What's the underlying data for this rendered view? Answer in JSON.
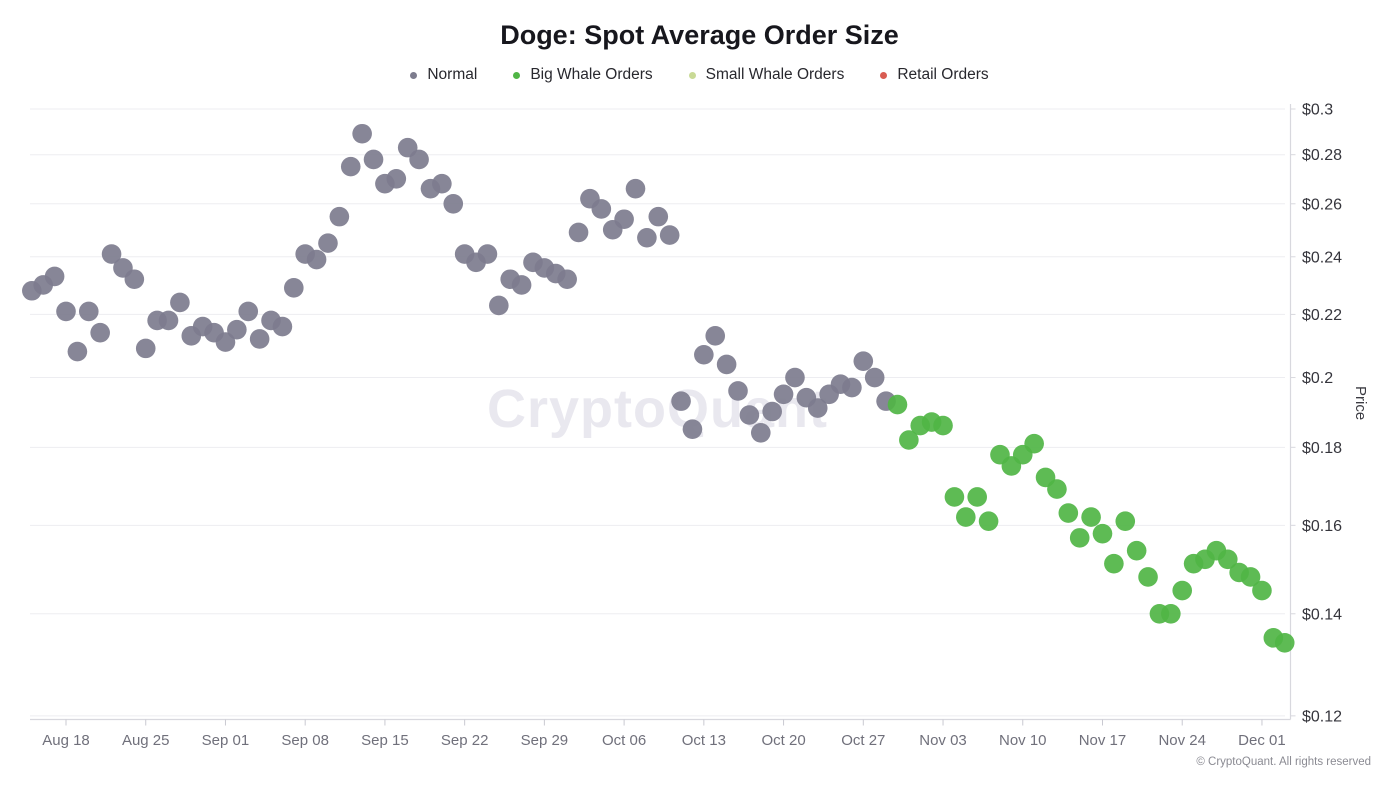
{
  "watermark": "CryptoQuant",
  "copyright": "© CryptoQuant. All rights reserved",
  "chart_data": {
    "type": "scatter",
    "title": "Doge: Spot Average Order Size",
    "xlabel": "",
    "ylabel": "Price",
    "y_scale": "log",
    "y_axis_side": "right",
    "grid": true,
    "legend_position": "top",
    "ylim": [
      0.12,
      0.3
    ],
    "x_ticks": [
      "Aug 18",
      "Aug 25",
      "Sep 01",
      "Sep 08",
      "Sep 15",
      "Sep 22",
      "Sep 29",
      "Oct 06",
      "Oct 13",
      "Oct 20",
      "Oct 27",
      "Nov 03",
      "Nov 10",
      "Nov 17",
      "Nov 24",
      "Dec 01"
    ],
    "y_ticks": [
      {
        "label": "$0.3",
        "value": 0.3
      },
      {
        "label": "$0.28",
        "value": 0.28
      },
      {
        "label": "$0.26",
        "value": 0.26
      },
      {
        "label": "$0.24",
        "value": 0.24
      },
      {
        "label": "$0.22",
        "value": 0.22
      },
      {
        "label": "$0.2",
        "value": 0.2
      },
      {
        "label": "$0.18",
        "value": 0.18
      },
      {
        "label": "$0.16",
        "value": 0.16
      },
      {
        "label": "$0.14",
        "value": 0.14
      },
      {
        "label": "$0.12",
        "value": 0.12
      }
    ],
    "series": [
      {
        "name": "Normal",
        "color": "#7d7c8e",
        "points": [
          [
            "Aug 15",
            0.228
          ],
          [
            "Aug 16",
            0.23
          ],
          [
            "Aug 17",
            0.233
          ],
          [
            "Aug 18",
            0.221
          ],
          [
            "Aug 19",
            0.208
          ],
          [
            "Aug 20",
            0.221
          ],
          [
            "Aug 21",
            0.214
          ],
          [
            "Aug 22",
            0.241
          ],
          [
            "Aug 23",
            0.236
          ],
          [
            "Aug 24",
            0.232
          ],
          [
            "Aug 25",
            0.209
          ],
          [
            "Aug 26",
            0.218
          ],
          [
            "Aug 27",
            0.218
          ],
          [
            "Aug 28",
            0.224
          ],
          [
            "Aug 29",
            0.213
          ],
          [
            "Aug 30",
            0.216
          ],
          [
            "Aug 31",
            0.214
          ],
          [
            "Sep 01",
            0.211
          ],
          [
            "Sep 02",
            0.215
          ],
          [
            "Sep 03",
            0.221
          ],
          [
            "Sep 04",
            0.212
          ],
          [
            "Sep 05",
            0.218
          ],
          [
            "Sep 06",
            0.216
          ],
          [
            "Sep 07",
            0.229
          ],
          [
            "Sep 08",
            0.241
          ],
          [
            "Sep 09",
            0.239
          ],
          [
            "Sep 10",
            0.245
          ],
          [
            "Sep 11",
            0.255
          ],
          [
            "Sep 12",
            0.275
          ],
          [
            "Sep 13",
            0.289
          ],
          [
            "Sep 14",
            0.278
          ],
          [
            "Sep 15",
            0.268
          ],
          [
            "Sep 16",
            0.27
          ],
          [
            "Sep 17",
            0.283
          ],
          [
            "Sep 18",
            0.278
          ],
          [
            "Sep 19",
            0.266
          ],
          [
            "Sep 20",
            0.268
          ],
          [
            "Sep 21",
            0.26
          ],
          [
            "Sep 22",
            0.241
          ],
          [
            "Sep 23",
            0.238
          ],
          [
            "Sep 24",
            0.241
          ],
          [
            "Sep 25",
            0.223
          ],
          [
            "Sep 26",
            0.232
          ],
          [
            "Sep 27",
            0.23
          ],
          [
            "Sep 28",
            0.238
          ],
          [
            "Sep 29",
            0.236
          ],
          [
            "Sep 30",
            0.234
          ],
          [
            "Oct 01",
            0.232
          ],
          [
            "Oct 02",
            0.249
          ],
          [
            "Oct 03",
            0.262
          ],
          [
            "Oct 04",
            0.258
          ],
          [
            "Oct 05",
            0.25
          ],
          [
            "Oct 06",
            0.254
          ],
          [
            "Oct 07",
            0.266
          ],
          [
            "Oct 08",
            0.247
          ],
          [
            "Oct 09",
            0.255
          ],
          [
            "Oct 10",
            0.248
          ],
          [
            "Oct 11",
            0.193
          ],
          [
            "Oct 12",
            0.185
          ],
          [
            "Oct 13",
            0.207
          ],
          [
            "Oct 14",
            0.213
          ],
          [
            "Oct 15",
            0.204
          ],
          [
            "Oct 16",
            0.196
          ],
          [
            "Oct 17",
            0.189
          ],
          [
            "Oct 18",
            0.184
          ],
          [
            "Oct 19",
            0.19
          ],
          [
            "Oct 20",
            0.195
          ],
          [
            "Oct 21",
            0.2
          ],
          [
            "Oct 22",
            0.194
          ],
          [
            "Oct 23",
            0.191
          ],
          [
            "Oct 24",
            0.195
          ],
          [
            "Oct 25",
            0.198
          ],
          [
            "Oct 26",
            0.197
          ],
          [
            "Oct 27",
            0.205
          ],
          [
            "Oct 28",
            0.2
          ],
          [
            "Oct 29",
            0.193
          ]
        ]
      },
      {
        "name": "Big Whale Orders",
        "color": "#50b545",
        "points": [
          [
            "Oct 30",
            0.192
          ],
          [
            "Oct 31",
            0.182
          ],
          [
            "Nov 01",
            0.186
          ],
          [
            "Nov 02",
            0.187
          ],
          [
            "Nov 03",
            0.186
          ],
          [
            "Nov 04",
            0.167
          ],
          [
            "Nov 05",
            0.162
          ],
          [
            "Nov 06",
            0.167
          ],
          [
            "Nov 07",
            0.161
          ],
          [
            "Nov 08",
            0.178
          ],
          [
            "Nov 09",
            0.175
          ],
          [
            "Nov 10",
            0.178
          ],
          [
            "Nov 11",
            0.181
          ],
          [
            "Nov 12",
            0.172
          ],
          [
            "Nov 13",
            0.169
          ],
          [
            "Nov 14",
            0.163
          ],
          [
            "Nov 15",
            0.157
          ],
          [
            "Nov 16",
            0.162
          ],
          [
            "Nov 17",
            0.158
          ],
          [
            "Nov 18",
            0.151
          ],
          [
            "Nov 19",
            0.161
          ],
          [
            "Nov 20",
            0.154
          ],
          [
            "Nov 21",
            0.148
          ],
          [
            "Nov 22",
            0.14
          ],
          [
            "Nov 23",
            0.14
          ],
          [
            "Nov 24",
            0.145
          ],
          [
            "Nov 25",
            0.151
          ],
          [
            "Nov 26",
            0.152
          ],
          [
            "Nov 27",
            0.154
          ],
          [
            "Nov 28",
            0.152
          ],
          [
            "Nov 29",
            0.149
          ],
          [
            "Nov 30",
            0.148
          ],
          [
            "Dec 01",
            0.145
          ],
          [
            "Dec 02",
            0.135
          ],
          [
            "Dec 03",
            0.134
          ]
        ]
      },
      {
        "name": "Small Whale Orders",
        "color": "#c9da96",
        "points": []
      },
      {
        "name": "Retail Orders",
        "color": "#d95c52",
        "points": []
      }
    ]
  }
}
